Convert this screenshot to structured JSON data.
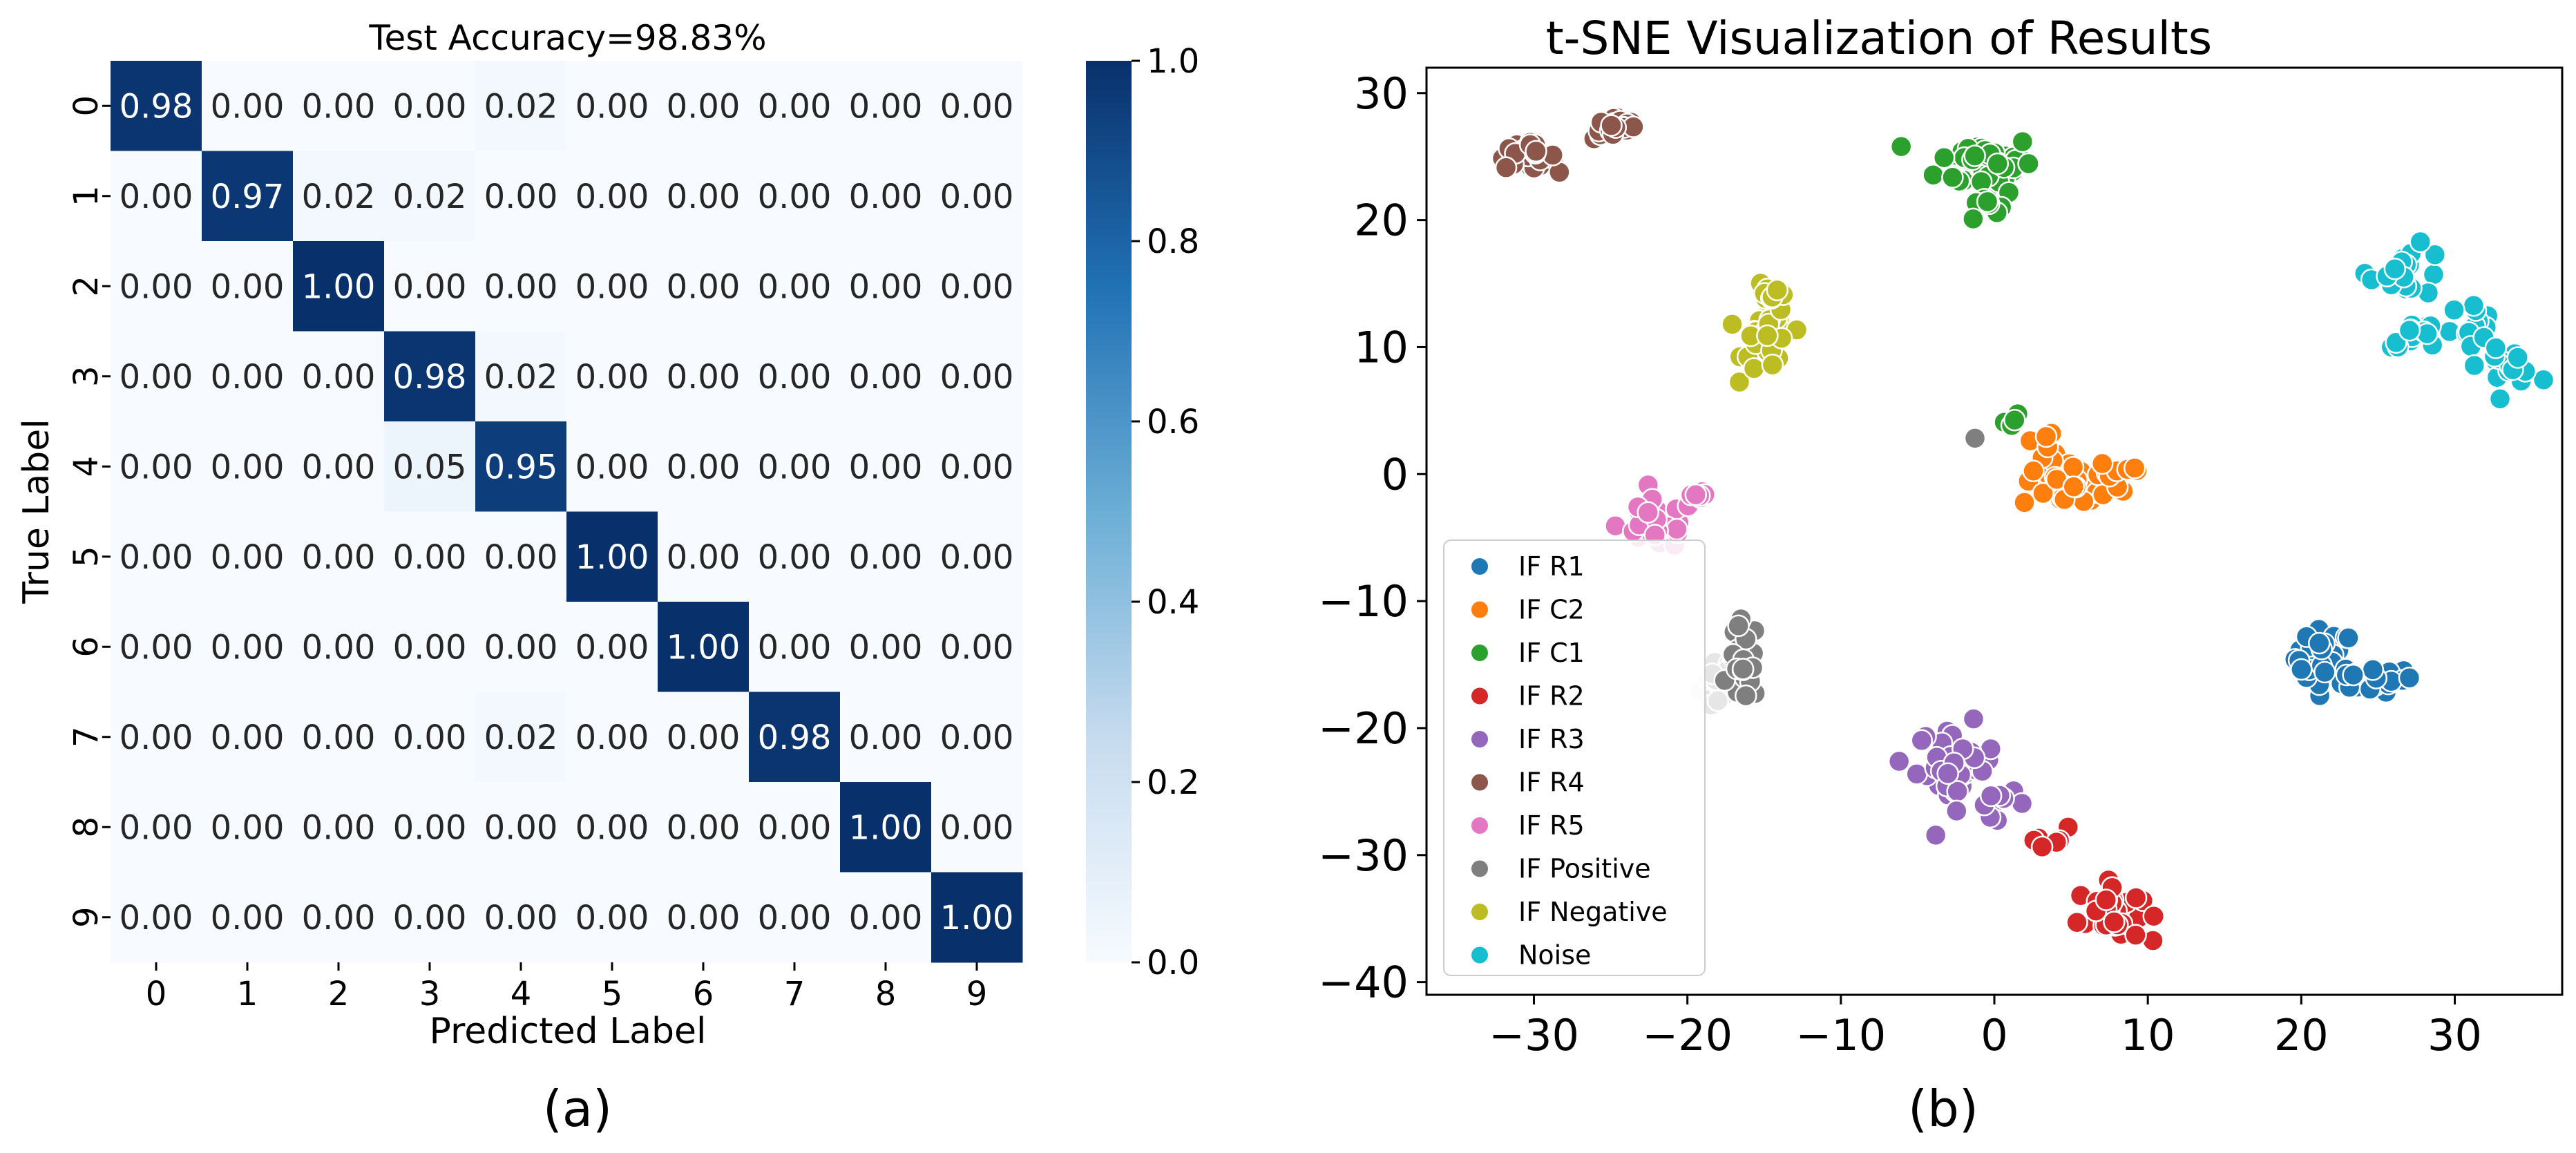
{
  "chart_data": [
    {
      "type": "heatmap",
      "title": "Test Accuracy=98.83%",
      "xlabel": "Predicted Label",
      "ylabel": "True Label",
      "x_categories": [
        "0",
        "1",
        "2",
        "3",
        "4",
        "5",
        "6",
        "7",
        "8",
        "9"
      ],
      "y_categories": [
        "0",
        "1",
        "2",
        "3",
        "4",
        "5",
        "6",
        "7",
        "8",
        "9"
      ],
      "values": [
        [
          0.98,
          0.0,
          0.0,
          0.0,
          0.02,
          0.0,
          0.0,
          0.0,
          0.0,
          0.0
        ],
        [
          0.0,
          0.97,
          0.02,
          0.02,
          0.0,
          0.0,
          0.0,
          0.0,
          0.0,
          0.0
        ],
        [
          0.0,
          0.0,
          1.0,
          0.0,
          0.0,
          0.0,
          0.0,
          0.0,
          0.0,
          0.0
        ],
        [
          0.0,
          0.0,
          0.0,
          0.98,
          0.02,
          0.0,
          0.0,
          0.0,
          0.0,
          0.0
        ],
        [
          0.0,
          0.0,
          0.0,
          0.05,
          0.95,
          0.0,
          0.0,
          0.0,
          0.0,
          0.0
        ],
        [
          0.0,
          0.0,
          0.0,
          0.0,
          0.0,
          1.0,
          0.0,
          0.0,
          0.0,
          0.0
        ],
        [
          0.0,
          0.0,
          0.0,
          0.0,
          0.0,
          0.0,
          1.0,
          0.0,
          0.0,
          0.0
        ],
        [
          0.0,
          0.0,
          0.0,
          0.0,
          0.02,
          0.0,
          0.0,
          0.98,
          0.0,
          0.0
        ],
        [
          0.0,
          0.0,
          0.0,
          0.0,
          0.0,
          0.0,
          0.0,
          0.0,
          1.0,
          0.0
        ],
        [
          0.0,
          0.0,
          0.0,
          0.0,
          0.0,
          0.0,
          0.0,
          0.0,
          0.0,
          1.0
        ]
      ],
      "colorbar": {
        "range": [
          0.0,
          1.0
        ],
        "ticks": [
          "0.0",
          "0.2",
          "0.4",
          "0.6",
          "0.8",
          "1.0"
        ],
        "colors": [
          "#f7fbff",
          "#c6dbef",
          "#6baed6",
          "#2171b5",
          "#08306b"
        ]
      },
      "panel_label": "(a)"
    },
    {
      "type": "scatter",
      "title": "t-SNE Visualization of Results",
      "xlabel": "",
      "ylabel": "",
      "xlim": [
        -37,
        37
      ],
      "ylim": [
        -41,
        32
      ],
      "x_ticks": [
        "−30",
        "−20",
        "−10",
        "0",
        "10",
        "20",
        "30"
      ],
      "y_ticks": [
        "30",
        "20",
        "10",
        "0",
        "−10",
        "−20",
        "−30",
        "−40"
      ],
      "legend_position": "lower-left",
      "series": [
        {
          "name": "IF R1",
          "color": "#1f77b4",
          "clusters": [
            {
              "cx": 21.5,
              "cy": -14.5,
              "sx": 1.2,
              "sy": 1.4,
              "n": 30
            },
            {
              "cx": 24.5,
              "cy": -16.2,
              "sx": 1.8,
              "sy": 0.6,
              "n": 22
            }
          ]
        },
        {
          "name": "IF C2",
          "color": "#ff7f0e",
          "clusters": [
            {
              "cx": 5.0,
              "cy": -0.8,
              "sx": 2.0,
              "sy": 1.2,
              "n": 45
            },
            {
              "cx": 8.5,
              "cy": 0.4,
              "sx": 0.8,
              "sy": 0.5,
              "n": 8
            },
            {
              "cx": 3.0,
              "cy": 2.5,
              "sx": 0.6,
              "sy": 0.6,
              "n": 5
            }
          ]
        },
        {
          "name": "IF C1",
          "color": "#2ca02c",
          "clusters": [
            {
              "cx": -0.5,
              "cy": 24.5,
              "sx": 2.0,
              "sy": 1.4,
              "n": 55
            },
            {
              "cx": -0.8,
              "cy": 21.2,
              "sx": 0.7,
              "sy": 0.6,
              "n": 8
            },
            {
              "cx": 1.2,
              "cy": 4.0,
              "sx": 0.5,
              "sy": 0.4,
              "n": 5
            }
          ]
        },
        {
          "name": "IF R2",
          "color": "#d62728",
          "clusters": [
            {
              "cx": 7.5,
              "cy": -34.5,
              "sx": 1.3,
              "sy": 1.4,
              "n": 40
            },
            {
              "cx": 3.5,
              "cy": -28.5,
              "sx": 0.8,
              "sy": 0.5,
              "n": 8
            }
          ]
        },
        {
          "name": "IF R3",
          "color": "#9467bd",
          "clusters": [
            {
              "cx": -2.5,
              "cy": -23.0,
              "sx": 1.6,
              "sy": 2.0,
              "n": 40
            },
            {
              "cx": 0.5,
              "cy": -26.0,
              "sx": 1.0,
              "sy": 0.6,
              "n": 10
            }
          ]
        },
        {
          "name": "IF R4",
          "color": "#8c564b",
          "clusters": [
            {
              "cx": -30.5,
              "cy": 25.0,
              "sx": 1.2,
              "sy": 0.6,
              "n": 30
            },
            {
              "cx": -24.5,
              "cy": 27.3,
              "sx": 1.0,
              "sy": 0.6,
              "n": 28
            }
          ]
        },
        {
          "name": "IF R5",
          "color": "#e377c2",
          "clusters": [
            {
              "cx": -22.0,
              "cy": -4.0,
              "sx": 1.6,
              "sy": 1.2,
              "n": 40
            },
            {
              "cx": -19.5,
              "cy": -2.0,
              "sx": 0.5,
              "sy": 0.6,
              "n": 6
            }
          ]
        },
        {
          "name": "IF Positive",
          "color": "#7f7f7f",
          "clusters": [
            {
              "cx": -16.3,
              "cy": -14.8,
              "sx": 0.6,
              "sy": 2.0,
              "n": 30
            },
            {
              "cx": -1.5,
              "cy": 2.6,
              "sx": 0.2,
              "sy": 0.2,
              "n": 1
            }
          ]
        },
        {
          "name": "IF Negative",
          "color": "#bcbd22",
          "clusters": [
            {
              "cx": -14.8,
              "cy": 10.5,
              "sx": 1.0,
              "sy": 1.6,
              "n": 40
            },
            {
              "cx": -14.5,
              "cy": 14.5,
              "sx": 0.6,
              "sy": 0.6,
              "n": 8
            }
          ]
        },
        {
          "name": "Noise",
          "color": "#17becf",
          "clusters": [
            {
              "cx": 27.0,
              "cy": 16.0,
              "sx": 1.6,
              "sy": 1.2,
              "n": 18
            },
            {
              "cx": 28.0,
              "cy": 11.0,
              "sx": 1.6,
              "sy": 0.6,
              "n": 14
            },
            {
              "cx": 31.0,
              "cy": 12.0,
              "sx": 1.0,
              "sy": 1.0,
              "n": 12
            },
            {
              "cx": 33.5,
              "cy": 8.5,
              "sx": 1.2,
              "sy": 0.8,
              "n": 16
            }
          ]
        }
      ],
      "unlabeled_clusters": [
        {
          "color": "#e6e6e6",
          "clusters": [
            {
              "cx": -18.0,
              "cy": -16.5,
              "sx": 0.7,
              "sy": 1.5,
              "n": 18
            }
          ]
        }
      ],
      "panel_label": "(b)"
    }
  ]
}
